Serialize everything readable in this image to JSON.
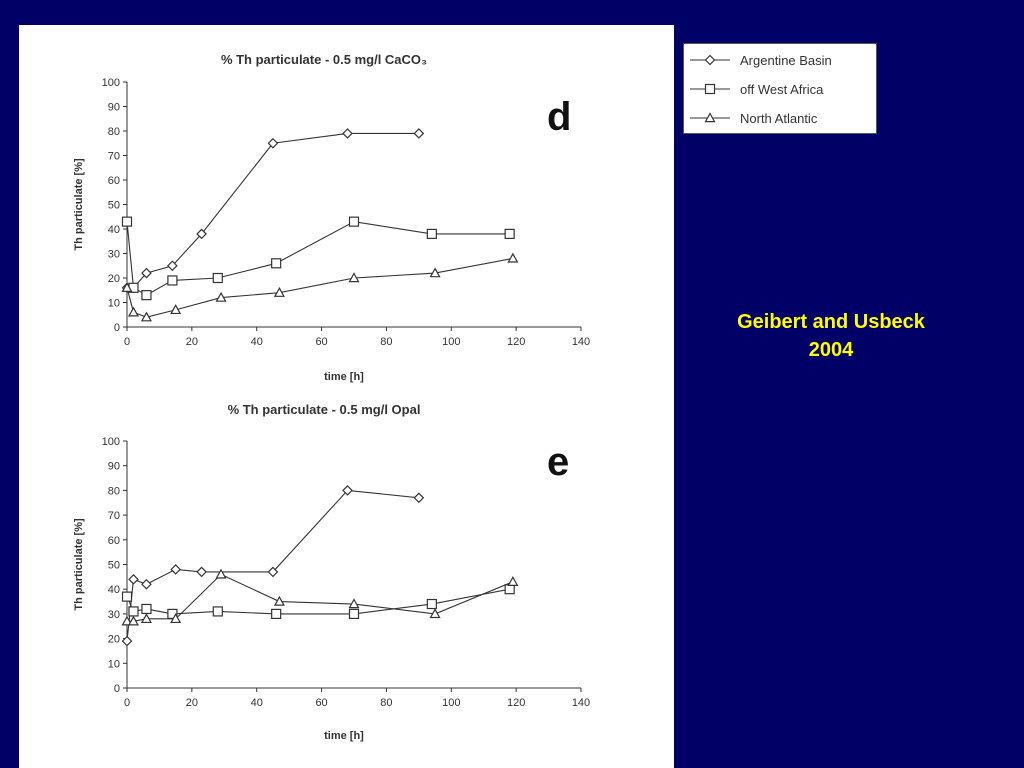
{
  "colors": {
    "background": "#000066",
    "panel": "#ffffff",
    "citation": "#ffff00",
    "ink": "#333333"
  },
  "citation": {
    "line1": "Geibert and Usbeck",
    "line2": "2004"
  },
  "legend": [
    {
      "label": "Argentine Basin",
      "marker": "diamond"
    },
    {
      "label": "off West Africa",
      "marker": "square"
    },
    {
      "label": "North Atlantic",
      "marker": "triangle"
    }
  ],
  "chart_data": [
    {
      "type": "line",
      "title": "% Th particulate - 0.5 mg/l CaCO₃",
      "panel_letter": "d",
      "xlabel": "time [h]",
      "ylabel": "Th particulate [%]",
      "xlim": [
        0,
        140
      ],
      "ylim": [
        0,
        100
      ],
      "xticks": [
        0,
        20,
        40,
        60,
        80,
        100,
        120,
        140
      ],
      "yticks": [
        0,
        10,
        20,
        30,
        40,
        50,
        60,
        70,
        80,
        90,
        100
      ],
      "grid": false,
      "series": [
        {
          "name": "Argentine Basin",
          "marker": "diamond",
          "x": [
            0,
            2,
            6,
            14,
            23,
            45,
            68,
            90
          ],
          "y": [
            16,
            16,
            22,
            25,
            38,
            75,
            79,
            79
          ]
        },
        {
          "name": "off West Africa",
          "marker": "square",
          "x": [
            0,
            2,
            6,
            14,
            28,
            46,
            70,
            94,
            118
          ],
          "y": [
            43,
            16,
            13,
            19,
            20,
            26,
            43,
            38,
            38
          ]
        },
        {
          "name": "North Atlantic",
          "marker": "triangle",
          "x": [
            0,
            2,
            6,
            15,
            29,
            47,
            70,
            95,
            119
          ],
          "y": [
            16,
            6,
            4,
            7,
            12,
            14,
            20,
            22,
            28
          ]
        }
      ]
    },
    {
      "type": "line",
      "title": "% Th particulate - 0.5 mg/l Opal",
      "panel_letter": "e",
      "xlabel": "time [h]",
      "ylabel": "Th particulate [%]",
      "xlim": [
        0,
        140
      ],
      "ylim": [
        0,
        100
      ],
      "xticks": [
        0,
        20,
        40,
        60,
        80,
        100,
        120,
        140
      ],
      "yticks": [
        0,
        10,
        20,
        30,
        40,
        50,
        60,
        70,
        80,
        90,
        100
      ],
      "grid": false,
      "series": [
        {
          "name": "Argentine Basin",
          "marker": "diamond",
          "x": [
            0,
            2,
            6,
            15,
            23,
            45,
            68,
            90
          ],
          "y": [
            19,
            44,
            42,
            48,
            47,
            47,
            80,
            77
          ]
        },
        {
          "name": "off West Africa",
          "marker": "square",
          "x": [
            0,
            2,
            6,
            14,
            28,
            46,
            70,
            94,
            118
          ],
          "y": [
            37,
            31,
            32,
            30,
            31,
            30,
            30,
            34,
            40
          ]
        },
        {
          "name": "North Atlantic",
          "marker": "triangle",
          "x": [
            0,
            2,
            6,
            15,
            29,
            47,
            70,
            95,
            119
          ],
          "y": [
            27,
            27,
            28,
            28,
            46,
            35,
            34,
            30,
            43
          ]
        }
      ]
    }
  ]
}
